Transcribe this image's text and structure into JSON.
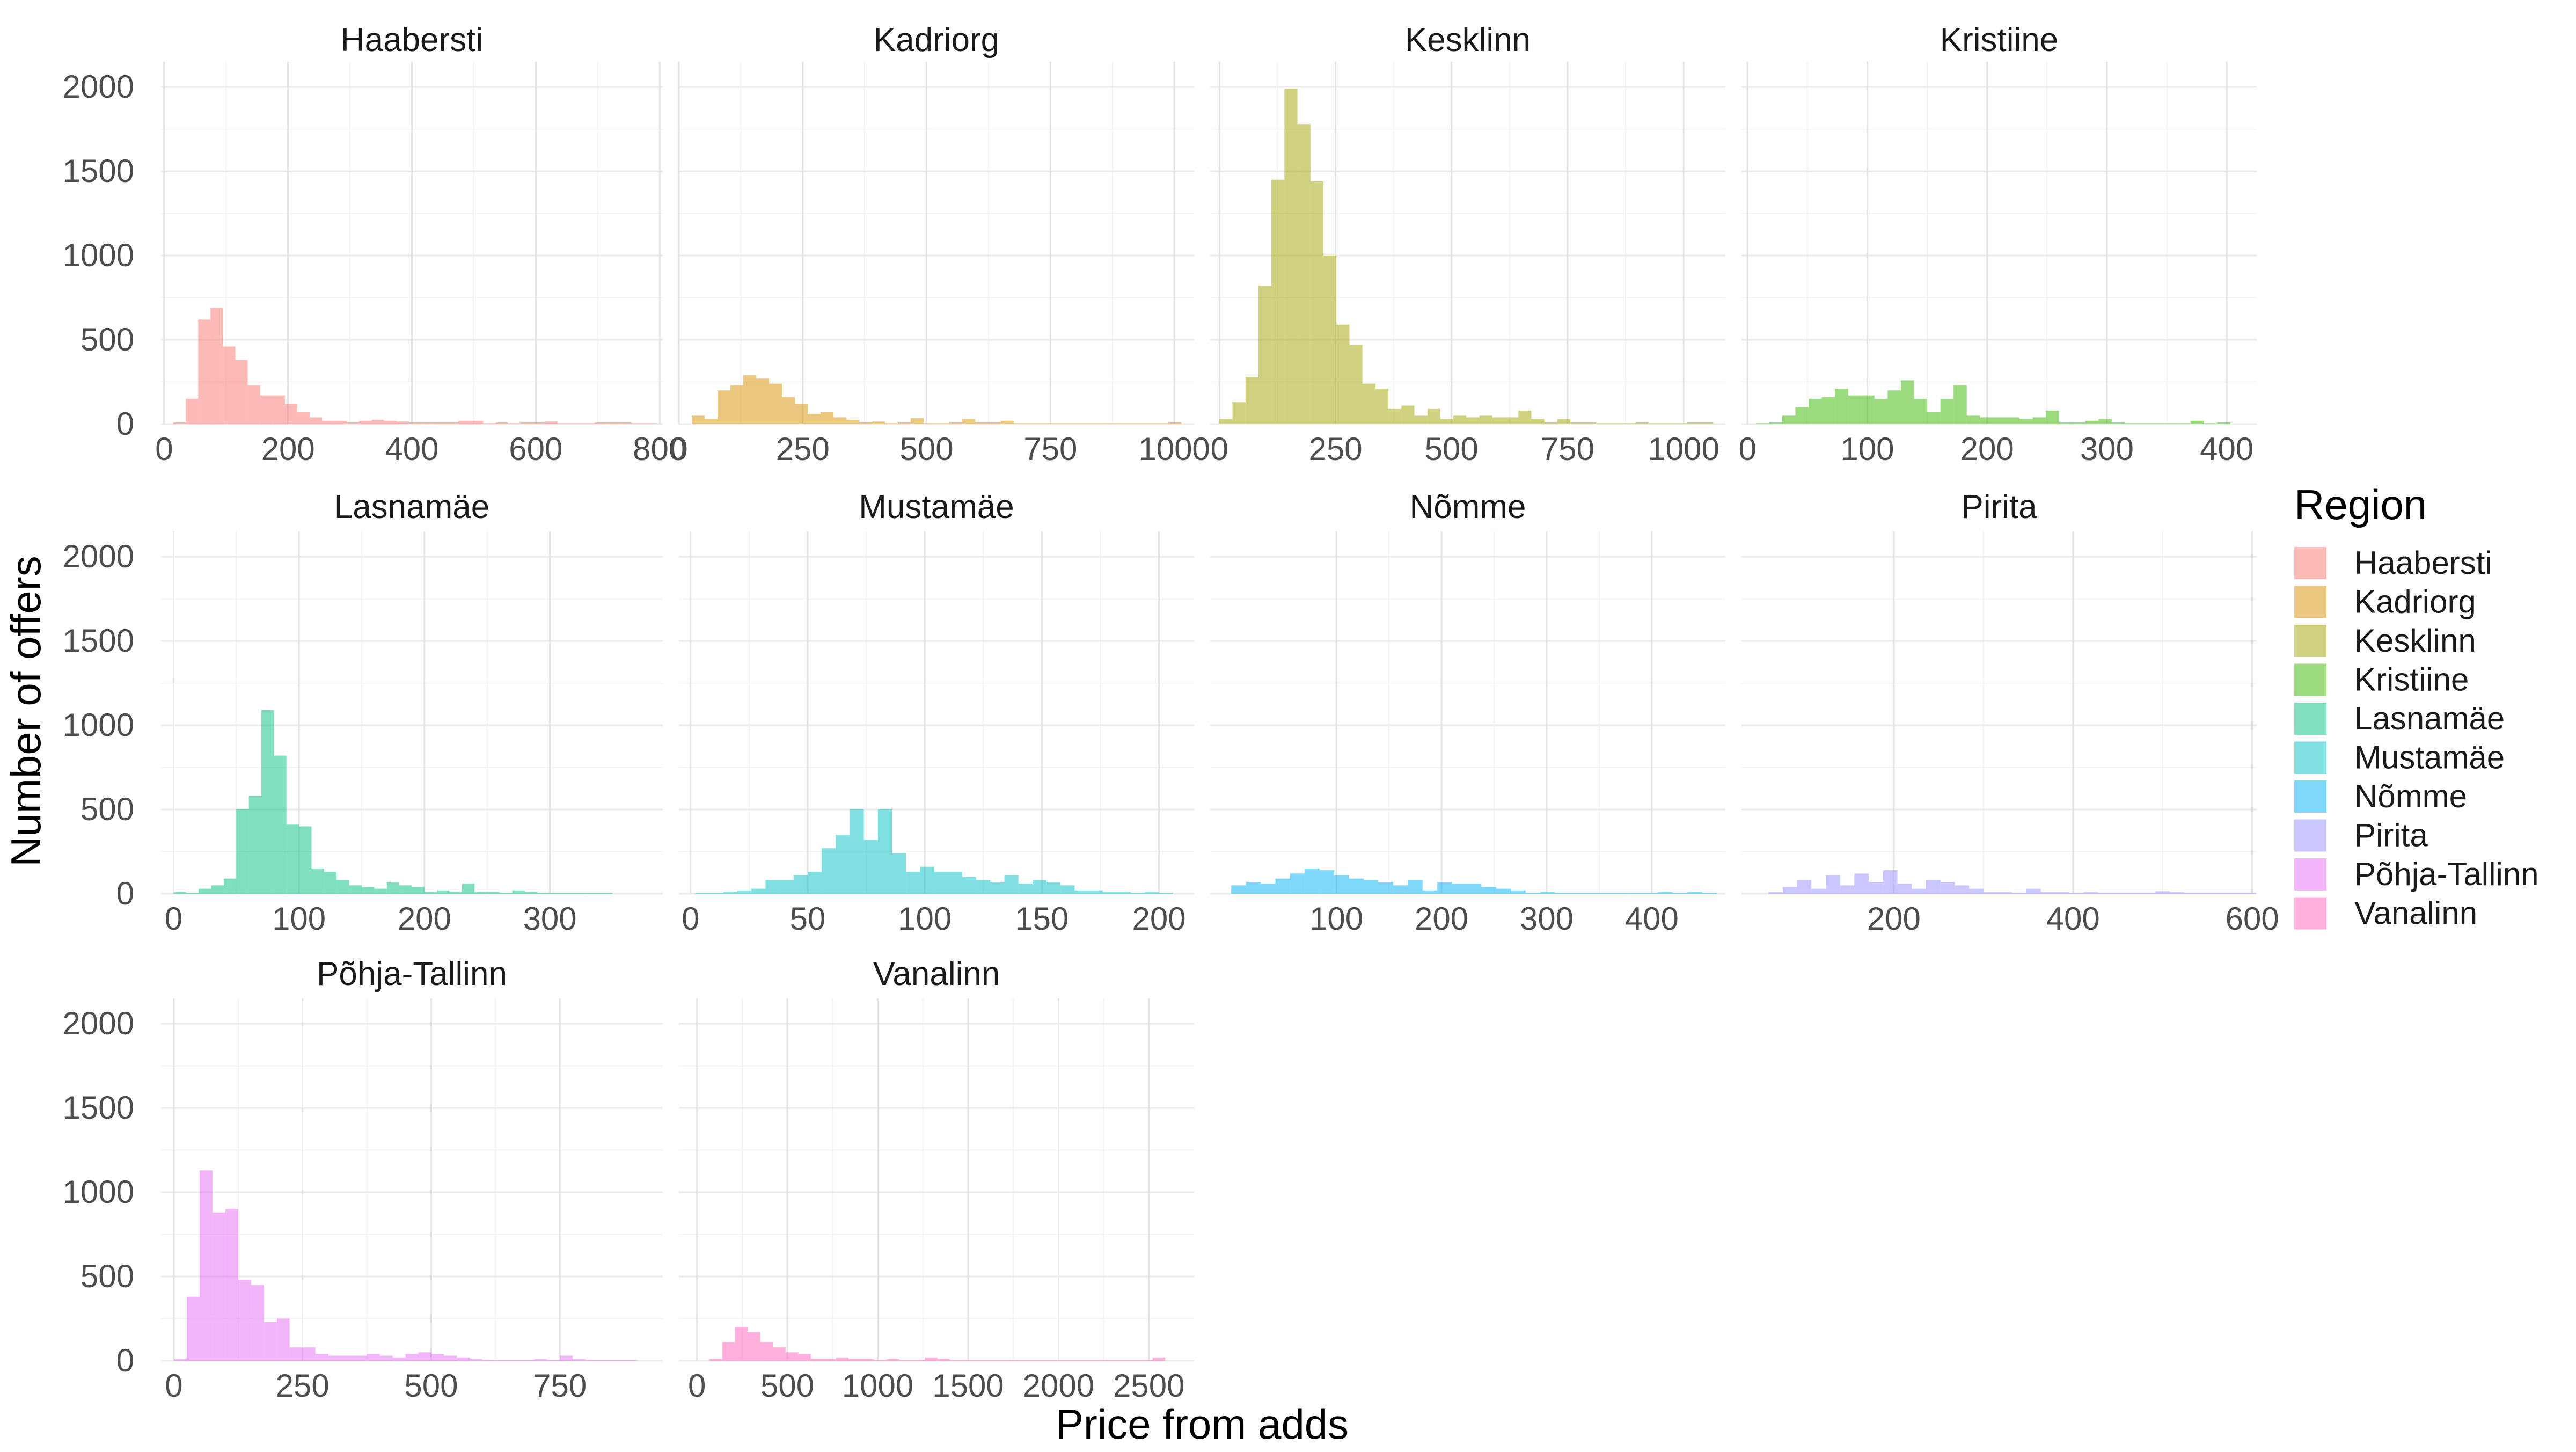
{
  "chart_data": {
    "type": "bar",
    "xlabel": "Price from adds",
    "ylabel": "Number of offers",
    "ylim": [
      0,
      2000
    ],
    "y_ticks": [
      0,
      500,
      1000,
      1500,
      2000
    ],
    "facet_layout": "4 columns, free x scales, shared y",
    "grid": true,
    "legend": {
      "title": "Region",
      "placement": "right",
      "entries": [
        "Haabersti",
        "Kadriorg",
        "Kesklinn",
        "Kristiine",
        "Lasnamäe",
        "Mustamäe",
        "Nõmme",
        "Pirita",
        "Põhja-Tallinn",
        "Vanalinn"
      ]
    },
    "panels": [
      {
        "region": "Haabersti",
        "color": "#F8766D",
        "xlim": [
          -5,
          805
        ],
        "x_ticks": [
          0,
          200,
          400,
          600,
          800
        ],
        "bin_width": 20,
        "bin_starts": [
          15,
          35,
          55,
          75,
          95,
          115,
          135,
          155,
          175,
          195,
          215,
          235,
          255,
          275,
          295,
          315,
          335,
          355,
          375,
          395,
          415,
          435,
          455,
          475,
          495,
          515,
          535,
          555,
          575,
          595,
          615,
          635,
          655,
          675,
          695,
          715,
          735,
          755,
          775
        ],
        "counts": [
          10,
          150,
          620,
          690,
          460,
          380,
          230,
          170,
          170,
          120,
          70,
          40,
          20,
          20,
          10,
          20,
          25,
          20,
          15,
          10,
          10,
          10,
          10,
          20,
          20,
          5,
          10,
          5,
          10,
          10,
          15,
          5,
          5,
          5,
          10,
          10,
          10,
          5,
          5
        ]
      },
      {
        "region": "Kadriorg",
        "color": "#D89000",
        "xlim": [
          0,
          1040
        ],
        "x_ticks": [
          0,
          250,
          500,
          750,
          1000
        ],
        "bin_width": 26,
        "bin_starts": [
          26,
          52,
          78,
          104,
          130,
          156,
          182,
          208,
          234,
          260,
          286,
          312,
          338,
          364,
          390,
          416,
          442,
          468,
          494,
          520,
          546,
          572,
          598,
          624,
          650,
          676,
          702,
          728,
          754,
          780,
          806,
          832,
          858,
          884,
          910,
          936,
          962,
          988
        ],
        "counts": [
          50,
          30,
          200,
          230,
          290,
          270,
          240,
          160,
          120,
          60,
          70,
          40,
          25,
          10,
          15,
          5,
          10,
          35,
          5,
          5,
          10,
          30,
          10,
          10,
          20,
          5,
          5,
          5,
          5,
          5,
          5,
          5,
          5,
          5,
          5,
          5,
          5,
          10
        ]
      },
      {
        "region": "Kesklinn",
        "color": "#A3A500",
        "xlim": [
          -20,
          1090
        ],
        "x_ticks": [
          0,
          250,
          500,
          750,
          1000
        ],
        "bin_width": 28,
        "bin_starts": [
          0,
          28,
          56,
          84,
          112,
          140,
          168,
          196,
          224,
          252,
          280,
          308,
          336,
          364,
          392,
          420,
          448,
          476,
          504,
          532,
          560,
          588,
          616,
          644,
          672,
          700,
          728,
          756,
          784,
          812,
          840,
          868,
          896,
          924,
          952,
          980,
          1008,
          1036
        ],
        "counts": [
          30,
          130,
          280,
          820,
          1450,
          1990,
          1780,
          1440,
          1000,
          590,
          470,
          240,
          210,
          90,
          110,
          50,
          90,
          30,
          50,
          40,
          50,
          40,
          40,
          80,
          30,
          10,
          30,
          10,
          10,
          5,
          5,
          5,
          10,
          5,
          5,
          5,
          10,
          10
        ]
      },
      {
        "region": "Kristiine",
        "color": "#39B600",
        "xlim": [
          -5,
          425
        ],
        "x_ticks": [
          0,
          100,
          200,
          300,
          400
        ],
        "bin_width": 11,
        "bin_starts": [
          7,
          18,
          29,
          40,
          51,
          62,
          73,
          84,
          95,
          106,
          117,
          128,
          139,
          150,
          161,
          172,
          183,
          194,
          205,
          216,
          227,
          238,
          249,
          260,
          271,
          282,
          293,
          304,
          315,
          326,
          337,
          348,
          359,
          370,
          381,
          392
        ],
        "counts": [
          5,
          10,
          50,
          100,
          150,
          160,
          210,
          170,
          170,
          150,
          200,
          260,
          150,
          70,
          150,
          230,
          50,
          40,
          40,
          40,
          30,
          40,
          80,
          10,
          10,
          20,
          30,
          10,
          5,
          5,
          5,
          5,
          5,
          20,
          5,
          10
        ]
      },
      {
        "region": "Lasnamäe",
        "color": "#00BF7D",
        "xlim": [
          -10,
          390
        ],
        "x_ticks": [
          0,
          100,
          200,
          300
        ],
        "bin_width": 10,
        "bin_starts": [
          0,
          10,
          20,
          30,
          40,
          50,
          60,
          70,
          80,
          90,
          100,
          110,
          120,
          130,
          140,
          150,
          160,
          170,
          180,
          190,
          200,
          210,
          220,
          230,
          240,
          250,
          260,
          270,
          280,
          290,
          300,
          310,
          320,
          330,
          340
        ],
        "counts": [
          10,
          5,
          30,
          50,
          90,
          500,
          580,
          1090,
          820,
          410,
          400,
          150,
          130,
          80,
          50,
          40,
          30,
          70,
          50,
          40,
          10,
          20,
          10,
          60,
          10,
          10,
          5,
          20,
          10,
          5,
          5,
          5,
          5,
          5,
          5
        ]
      },
      {
        "region": "Mustamäe",
        "color": "#00BFC4",
        "xlim": [
          -5,
          215
        ],
        "x_ticks": [
          0,
          50,
          100,
          150,
          200
        ],
        "bin_width": 6,
        "bin_starts": [
          2,
          8,
          14,
          20,
          26,
          32,
          38,
          44,
          50,
          56,
          62,
          68,
          74,
          80,
          86,
          92,
          98,
          104,
          110,
          116,
          122,
          128,
          134,
          140,
          146,
          152,
          158,
          164,
          170,
          176,
          182,
          188,
          194,
          200
        ],
        "counts": [
          5,
          5,
          10,
          20,
          30,
          80,
          80,
          110,
          130,
          270,
          350,
          500,
          320,
          500,
          240,
          130,
          160,
          130,
          130,
          100,
          80,
          70,
          110,
          60,
          80,
          70,
          50,
          20,
          20,
          10,
          10,
          5,
          10,
          5
        ]
      },
      {
        "region": "Nõmme",
        "color": "#00B0F6",
        "xlim": [
          -20,
          470
        ],
        "x_ticks": [
          100,
          200,
          300,
          400
        ],
        "bin_width": 14,
        "bin_starts": [
          0,
          14,
          28,
          42,
          56,
          70,
          84,
          98,
          112,
          126,
          140,
          154,
          168,
          182,
          196,
          210,
          224,
          238,
          252,
          266,
          280,
          294,
          308,
          322,
          336,
          350,
          364,
          378,
          392,
          406,
          420,
          434,
          448
        ],
        "counts": [
          50,
          70,
          60,
          90,
          120,
          150,
          140,
          110,
          90,
          80,
          70,
          50,
          80,
          20,
          70,
          60,
          60,
          40,
          30,
          20,
          5,
          10,
          5,
          5,
          5,
          5,
          5,
          5,
          5,
          10,
          5,
          10,
          5
        ]
      },
      {
        "region": "Pirita",
        "color": "#9590FF",
        "xlim": [
          30,
          605
        ],
        "x_ticks": [
          200,
          400,
          600
        ],
        "bin_width": 16,
        "bin_starts": [
          60,
          76,
          92,
          108,
          124,
          140,
          156,
          172,
          188,
          204,
          220,
          236,
          252,
          268,
          284,
          300,
          316,
          332,
          348,
          364,
          380,
          396,
          412,
          428,
          444,
          460,
          476,
          492,
          508,
          524,
          540,
          556,
          572,
          588
        ],
        "counts": [
          10,
          40,
          80,
          30,
          110,
          50,
          120,
          70,
          140,
          60,
          30,
          80,
          70,
          50,
          30,
          10,
          10,
          5,
          30,
          10,
          10,
          5,
          10,
          5,
          5,
          5,
          5,
          15,
          10,
          5,
          5,
          5,
          5,
          5
        ]
      },
      {
        "region": "Põhja-Tallinn",
        "color": "#E76BF3",
        "xlim": [
          -25,
          950
        ],
        "x_ticks": [
          0,
          250,
          500,
          750
        ],
        "bin_width": 25,
        "bin_starts": [
          0,
          25,
          50,
          75,
          100,
          125,
          150,
          175,
          200,
          225,
          250,
          275,
          300,
          325,
          350,
          375,
          400,
          425,
          450,
          475,
          500,
          525,
          550,
          575,
          600,
          625,
          650,
          675,
          700,
          725,
          750,
          775,
          800,
          825,
          850,
          875
        ],
        "counts": [
          10,
          380,
          1130,
          880,
          900,
          480,
          450,
          230,
          250,
          80,
          80,
          40,
          30,
          30,
          30,
          40,
          30,
          20,
          40,
          50,
          40,
          30,
          20,
          10,
          5,
          5,
          5,
          5,
          10,
          5,
          30,
          10,
          5,
          5,
          5,
          5
        ]
      },
      {
        "region": "Vanalinn",
        "color": "#FF62BC",
        "xlim": [
          -100,
          2750
        ],
        "x_ticks": [
          0,
          500,
          1000,
          1500,
          2000,
          2500
        ],
        "bin_width": 70,
        "bin_starts": [
          70,
          140,
          210,
          280,
          350,
          420,
          490,
          560,
          630,
          700,
          770,
          840,
          910,
          980,
          1050,
          1120,
          1190,
          1260,
          1330,
          1400,
          1470,
          1540,
          1610,
          1680,
          1750,
          1820,
          1890,
          1960,
          2030,
          2100,
          2170,
          2240,
          2310,
          2380,
          2450,
          2520
        ],
        "counts": [
          10,
          110,
          200,
          170,
          110,
          80,
          50,
          40,
          10,
          10,
          20,
          10,
          10,
          5,
          10,
          5,
          5,
          20,
          10,
          5,
          5,
          5,
          5,
          5,
          5,
          5,
          5,
          5,
          5,
          5,
          5,
          5,
          5,
          5,
          5,
          20
        ]
      }
    ]
  }
}
